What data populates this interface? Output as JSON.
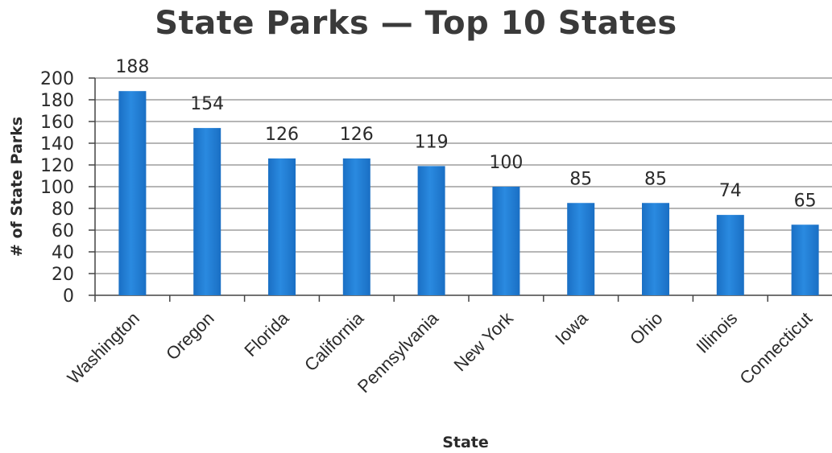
{
  "chart_data": {
    "type": "bar",
    "title": "State Parks — Top 10 States",
    "xlabel": "State",
    "ylabel": "# of State Parks",
    "categories": [
      "Washington",
      "Oregon",
      "Florida",
      "California",
      "Pennsylvania",
      "New York",
      "Iowa",
      "Ohio",
      "Illinois",
      "Connecticut"
    ],
    "values": [
      188,
      154,
      126,
      126,
      119,
      100,
      85,
      85,
      74,
      65
    ],
    "ylim": [
      0,
      200
    ],
    "yticks": [
      0,
      20,
      40,
      60,
      80,
      100,
      120,
      140,
      160,
      180,
      200
    ],
    "grid": true,
    "legend": "none",
    "bar_color": "#1f7fd6"
  }
}
